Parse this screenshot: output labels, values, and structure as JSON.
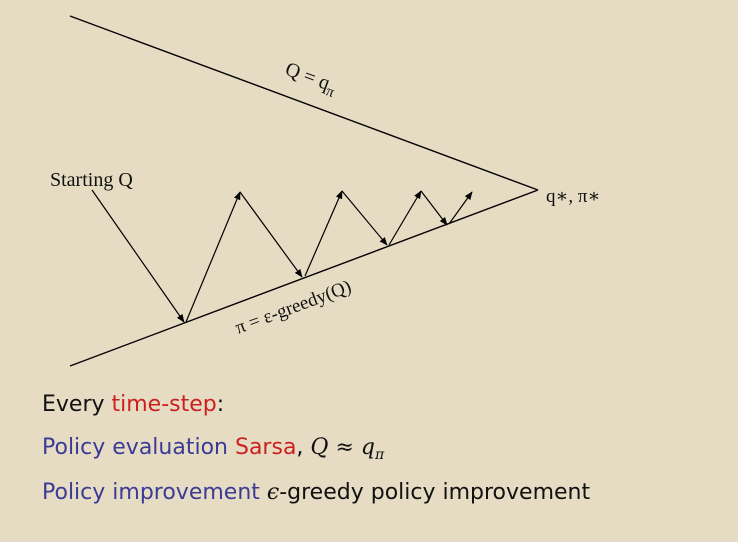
{
  "diagram": {
    "top_label": "Q = q",
    "top_label_sub": "π",
    "bottom_label": "π = ε-greedy(Q)",
    "start_label": "Starting Q",
    "end_label": "q∗, π∗"
  },
  "lines": {
    "line1": {
      "text1": "Every ",
      "text2": "time-step",
      "text3": ":"
    },
    "line2": {
      "label": "Policy evaluation ",
      "method": "Sarsa",
      "comma": ",",
      "Q": "Q",
      "approx": "≈",
      "q": "q",
      "sub": "π"
    },
    "line3": {
      "label": "Policy improvement ",
      "epsilon": "ϵ",
      "rest": "-greedy policy improvement"
    }
  }
}
